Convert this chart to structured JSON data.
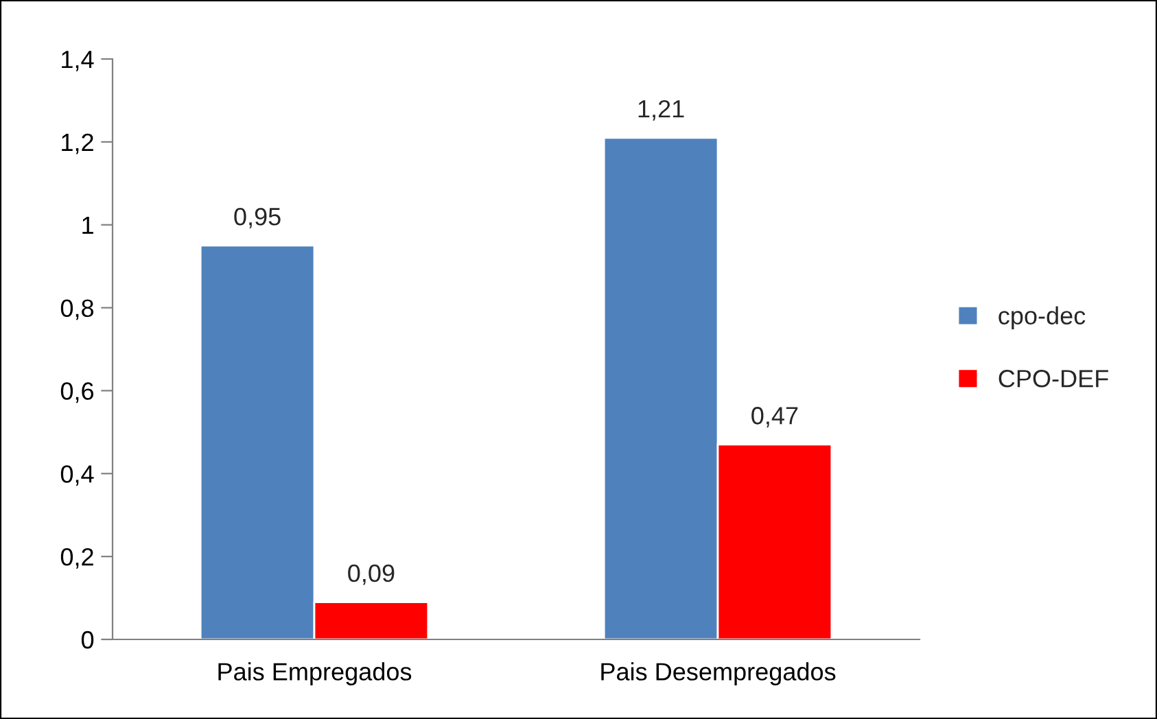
{
  "chart_data": {
    "type": "bar",
    "categories": [
      "Pais Empregados",
      "Pais Desempregados"
    ],
    "series": [
      {
        "name": "cpo-dec",
        "color": "#4f81bd",
        "values": [
          0.95,
          1.21
        ],
        "value_labels": [
          "0,95",
          "1,21"
        ]
      },
      {
        "name": "CPO-DEF",
        "color": "#ff0000",
        "values": [
          0.09,
          0.47
        ],
        "value_labels": [
          "0,09",
          "0,47"
        ]
      }
    ],
    "ylim": [
      0,
      1.4
    ],
    "yticks": [
      0,
      {
        "value": 0.2,
        "label": "0,2"
      },
      {
        "value": 0.4,
        "label": "0,4"
      },
      {
        "value": 0.6,
        "label": "0,6"
      },
      {
        "value": 0.8,
        "label": "0,8"
      },
      1,
      {
        "value": 1.2,
        "label": "1,2"
      },
      {
        "value": 1.4,
        "label": "1,4"
      }
    ],
    "grid": false,
    "legend": "right"
  }
}
